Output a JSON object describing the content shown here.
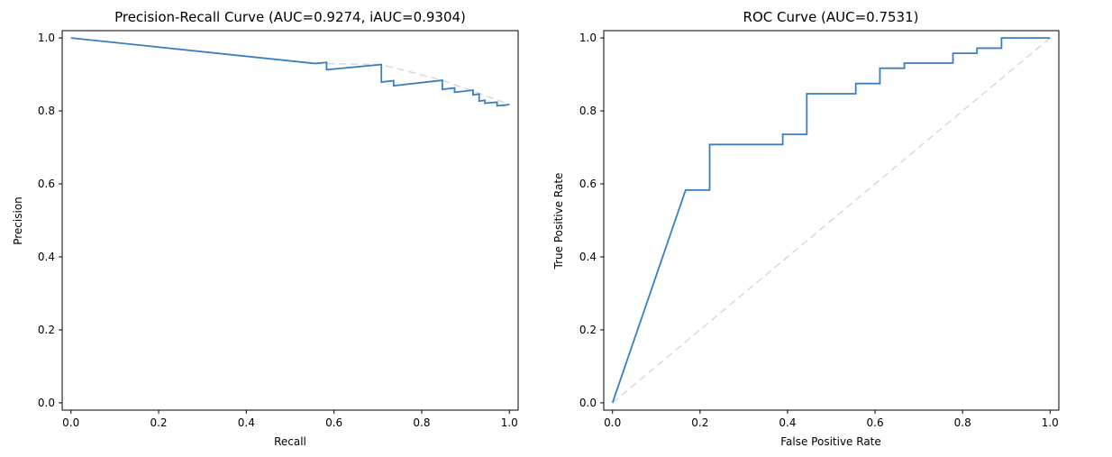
{
  "chart_data": [
    {
      "type": "line",
      "title": "Precision-Recall Curve (AUC=0.9274, iAUC=0.9304)",
      "xlabel": "Recall",
      "ylabel": "Precision",
      "xlim": [
        -0.02,
        1.02
      ],
      "ylim": [
        -0.02,
        1.02
      ],
      "xticks": [
        "0.0",
        "0.2",
        "0.4",
        "0.6",
        "0.8",
        "1.0"
      ],
      "yticks": [
        "0.0",
        "0.2",
        "0.4",
        "0.6",
        "0.8",
        "1.0"
      ],
      "grid": false,
      "series": [
        {
          "style": "solid",
          "color": "#3a7fc1",
          "x": [
            0.0,
            0.556,
            0.583,
            0.583,
            0.708,
            0.708,
            0.736,
            0.736,
            0.847,
            0.847,
            0.875,
            0.875,
            0.917,
            0.917,
            0.931,
            0.931,
            0.944,
            0.944,
            0.972,
            0.972,
            0.986,
            0.986,
            1.0
          ],
          "y": [
            1.0,
            0.93,
            0.933,
            0.913,
            0.927,
            0.879,
            0.883,
            0.869,
            0.884,
            0.859,
            0.863,
            0.851,
            0.857,
            0.844,
            0.846,
            0.827,
            0.829,
            0.821,
            0.824,
            0.814,
            0.816,
            0.815,
            0.818
          ]
        },
        {
          "style": "dashed",
          "color": "#d9d9d9",
          "x": [
            0.0,
            0.556,
            0.708,
            0.847,
            1.0
          ],
          "y": [
            1.0,
            0.93,
            0.927,
            0.884,
            0.818
          ]
        }
      ]
    },
    {
      "type": "line",
      "title": "ROC Curve (AUC=0.7531)",
      "xlabel": "False Positive Rate",
      "ylabel": "True Positive Rate",
      "xlim": [
        -0.02,
        1.02
      ],
      "ylim": [
        -0.02,
        1.02
      ],
      "xticks": [
        "0.0",
        "0.2",
        "0.4",
        "0.6",
        "0.8",
        "1.0"
      ],
      "yticks": [
        "0.0",
        "0.2",
        "0.4",
        "0.6",
        "0.8",
        "1.0"
      ],
      "grid": false,
      "series": [
        {
          "style": "solid",
          "color": "#3a7fc1",
          "x": [
            0.0,
            0.167,
            0.167,
            0.222,
            0.222,
            0.389,
            0.389,
            0.444,
            0.444,
            0.556,
            0.556,
            0.611,
            0.611,
            0.667,
            0.667,
            0.778,
            0.778,
            0.833,
            0.833,
            0.889,
            0.889,
            1.0
          ],
          "y": [
            0.0,
            0.583,
            0.583,
            0.583,
            0.708,
            0.708,
            0.736,
            0.736,
            0.847,
            0.847,
            0.875,
            0.875,
            0.917,
            0.917,
            0.931,
            0.931,
            0.958,
            0.958,
            0.972,
            0.972,
            1.0,
            1.0
          ]
        },
        {
          "style": "dashed",
          "color": "#d9d9d9",
          "x": [
            0.0,
            1.0
          ],
          "y": [
            0.0,
            1.0
          ]
        }
      ]
    }
  ]
}
